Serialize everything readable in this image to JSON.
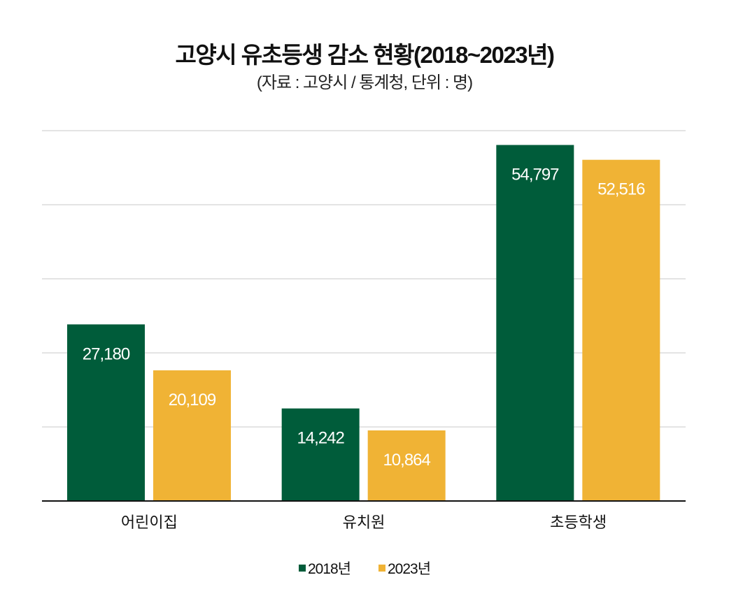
{
  "chart_data": {
    "type": "bar",
    "title": "고양시 유초등생 감소 현황(2018~2023년)",
    "subtitle": "(자료 : 고양시 / 통계청, 단위 : 명)",
    "categories": [
      "어린이집",
      "유치원",
      "초등학생"
    ],
    "series": [
      {
        "name": "2018년",
        "values": [
          27180,
          14242,
          54797
        ],
        "labels": [
          "27,180",
          "14,242",
          "54,797"
        ],
        "color": "#005c3a"
      },
      {
        "name": "2023년",
        "values": [
          20109,
          10864,
          52516
        ],
        "labels": [
          "20,109",
          "10,864",
          "52,516"
        ],
        "color": "#f0b335"
      }
    ],
    "ylim": [
      0,
      57000
    ],
    "grid": true,
    "legend": "bottom"
  }
}
